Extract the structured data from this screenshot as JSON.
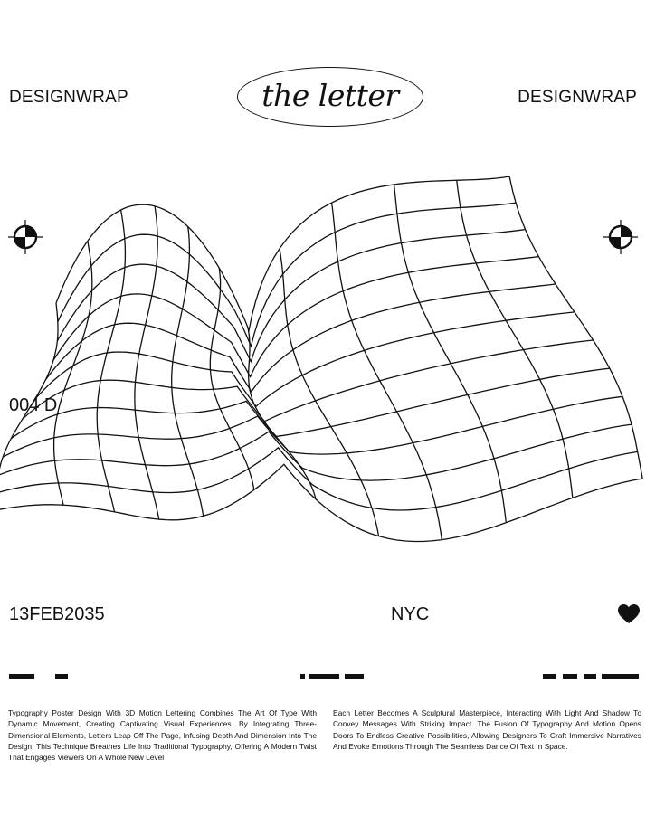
{
  "brand_left": "DESIGNWRAP",
  "brand_right": "DESIGNWRAP",
  "title": "the letter",
  "issue": "004  D",
  "date": "13FEB2035",
  "city": "NYC",
  "icons": {
    "registration": "registration-mark-icon",
    "heart": "heart-icon"
  },
  "description_left": "Typography Poster Design With 3D Motion Lettering Combines The Art Of Type With Dynamic Movement, Creating Captivating Visual Experiences. By Integrating Three-Dimensional Elements, Letters Leap Off The Page, Infusing Depth And Dimension Into The Design. This Technique Breathes Life Into Traditional Typography, Offering A Modern Twist That Engages Viewers On A Whole New Level",
  "description_right": "Each Letter Becomes A Sculptural Masterpiece, Interacting With Light And Shadow To Convey Messages With Striking Impact. The Fusion Of Typography And Motion Opens Doors To Endless Creative Possibilities, Allowing Designers To Craft Immersive Narratives And Evoke Emotions Through The Seamless Dance Of Text In Space.",
  "colors": {
    "ink": "#111111",
    "paper": "#ffffff"
  }
}
